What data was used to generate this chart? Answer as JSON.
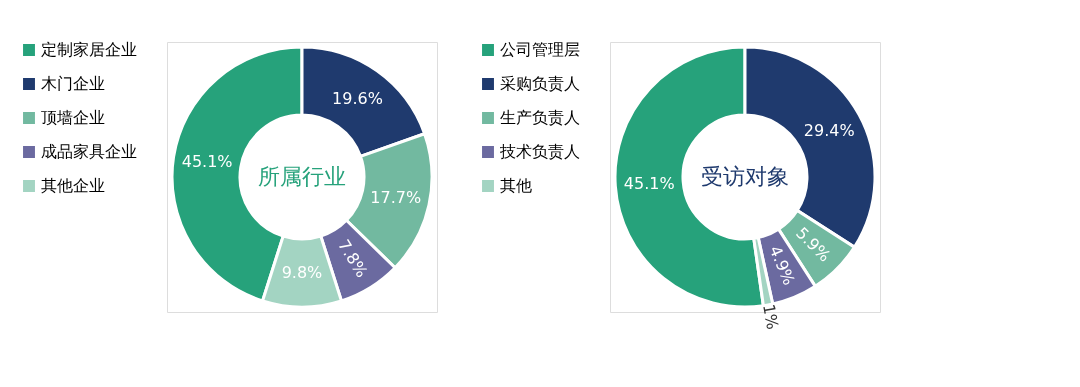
{
  "chart_data": [
    {
      "type": "donut",
      "title": "所属行业",
      "categories": [
        "定制家居企业",
        "木门企业",
        "顶墙企业",
        "成品家具企业",
        "其他企业"
      ],
      "values": [
        45.1,
        19.6,
        17.7,
        7.8,
        9.8
      ],
      "colors": [
        "#26a27b",
        "#1f3a6e",
        "#72b9a0",
        "#6b6aa0",
        "#a3d4c2"
      ],
      "value_labels": [
        "45.1%",
        "19.6%",
        "17.7%",
        "7.8%",
        "9.8%"
      ],
      "legend": "left"
    },
    {
      "type": "donut",
      "title": "受访对象",
      "categories": [
        "公司管理层",
        "采购负责人",
        "生产负责人",
        "技术负责人",
        "其他"
      ],
      "values": [
        45.1,
        29.4,
        5.9,
        4.9,
        1
      ],
      "colors": [
        "#26a27b",
        "#1f3a6e",
        "#72b9a0",
        "#6b6aa0",
        "#a3d4c2"
      ],
      "value_labels": [
        "45.1%",
        "29.4%",
        "5.9%",
        "4.9%",
        "1%"
      ],
      "legend": "left"
    }
  ]
}
